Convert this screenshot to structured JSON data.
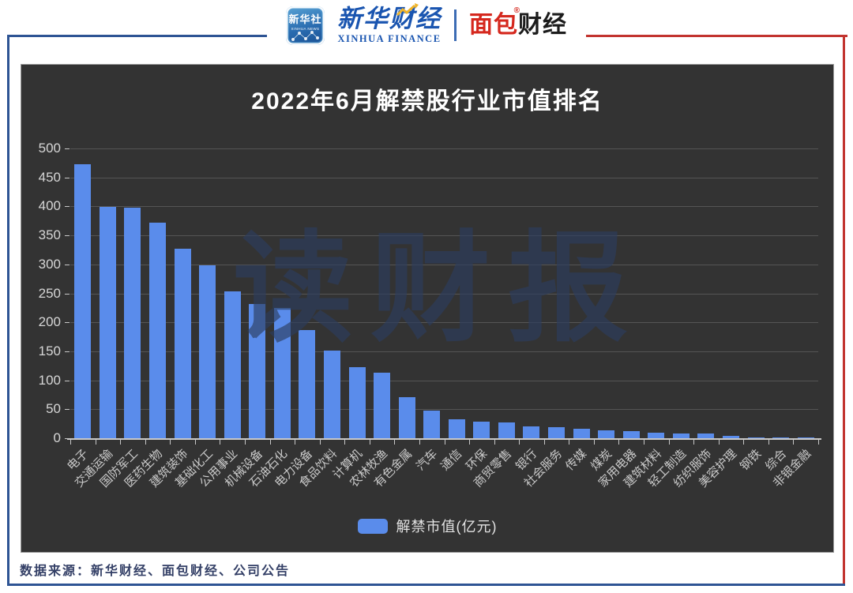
{
  "header": {
    "xinhua_app": {
      "line1": "新华社",
      "line2": "XINHUA NEWS"
    },
    "xinhua_finance": {
      "cn": "新华财经",
      "en": "XINHUA FINANCE"
    },
    "bread_finance": {
      "cn_red": "面包",
      "cn_dark": "财经",
      "reg": "®"
    }
  },
  "colors": {
    "bar": "#5A8CEB",
    "frame_blue": "#2E5494",
    "frame_red": "#C2342F",
    "panel_bg": "#333333"
  },
  "chart_data": {
    "type": "bar",
    "title": "2022年6月解禁股行业市值排名",
    "series_name": "解禁市值(亿元)",
    "watermark": "读财报",
    "categories": [
      "电子",
      "交通运输",
      "国防军工",
      "医药生物",
      "建筑装饰",
      "基础化工",
      "公用事业",
      "机械设备",
      "石油石化",
      "电力设备",
      "食品饮料",
      "计算机",
      "农林牧渔",
      "有色金属",
      "汽车",
      "通信",
      "环保",
      "商贸零售",
      "银行",
      "社会服务",
      "传媒",
      "煤炭",
      "家用电器",
      "建筑材料",
      "轻工制造",
      "纺织服饰",
      "美容护理",
      "钢铁",
      "综合",
      "非银金融"
    ],
    "values": [
      473,
      399,
      398,
      372,
      327,
      299,
      253,
      232,
      225,
      187,
      151,
      123,
      113,
      71,
      48,
      33,
      28,
      27,
      21,
      19,
      17,
      13,
      12,
      9,
      8.5,
      8,
      4,
      2,
      1.5,
      1
    ],
    "ylim": [
      0,
      500
    ],
    "yticks": [
      500,
      450,
      400,
      350,
      300,
      250,
      200,
      150,
      100,
      50,
      0
    ],
    "grid": true,
    "legend_position": "bottom",
    "xlabel": "",
    "ylabel": ""
  },
  "footer": {
    "source": "数据来源：新华财经、面包财经、公司公告"
  }
}
